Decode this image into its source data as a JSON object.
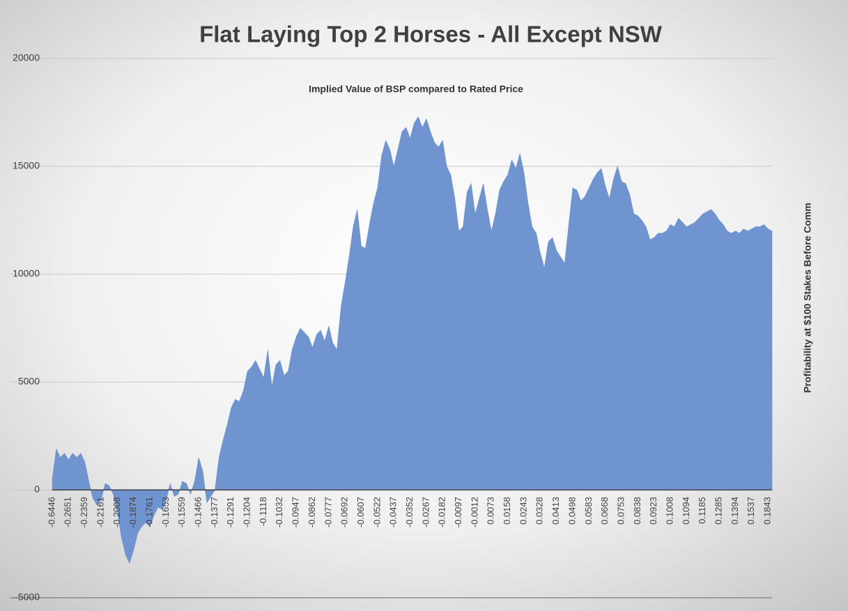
{
  "chart_data": {
    "type": "area",
    "title": "Flat Laying Top 2 Horses - All Except NSW",
    "subtitle": "Implied Value of BSP compared to Rated Price",
    "y_label": "Profitability at $100 Stakes Before Comm",
    "color": "#7094d0",
    "grid": true,
    "ylim": [
      -5000,
      20000
    ],
    "yticks": [
      -5000,
      0,
      5000,
      10000,
      15000,
      20000
    ],
    "categories": [
      "-0.6446",
      null,
      null,
      null,
      "-0.2651",
      null,
      null,
      null,
      "-0.2359",
      null,
      null,
      null,
      "-0.2161",
      null,
      null,
      null,
      "-0.2008",
      null,
      null,
      null,
      "-0.1874",
      null,
      null,
      null,
      "-0.1761",
      null,
      null,
      null,
      "-0.1653",
      null,
      null,
      null,
      "-0.1559",
      null,
      null,
      null,
      "-0.1466",
      null,
      null,
      null,
      "-0.1377",
      null,
      null,
      null,
      "-0.1291",
      null,
      null,
      null,
      "-0.1204",
      null,
      null,
      null,
      "-0.1118",
      null,
      null,
      null,
      "-0.1032",
      null,
      null,
      null,
      "-0.0947",
      null,
      null,
      null,
      "-0.0862",
      null,
      null,
      null,
      "-0.0777",
      null,
      null,
      null,
      "-0.0692",
      null,
      null,
      null,
      "-0.0607",
      null,
      null,
      null,
      "-0.0522",
      null,
      null,
      null,
      "-0.0437",
      null,
      null,
      null,
      "-0.0352",
      null,
      null,
      null,
      "-0.0267",
      null,
      null,
      null,
      "-0.0182",
      null,
      null,
      null,
      "-0.0097",
      null,
      null,
      null,
      "-0.0012",
      null,
      null,
      null,
      "0.0073",
      null,
      null,
      null,
      "0.0158",
      null,
      null,
      null,
      "0.0243",
      null,
      null,
      null,
      "0.0328",
      null,
      null,
      null,
      "0.0413",
      null,
      null,
      null,
      "0.0498",
      null,
      null,
      null,
      "0.0583",
      null,
      null,
      null,
      "0.0668",
      null,
      null,
      null,
      "0.0753",
      null,
      null,
      null,
      "0.0838",
      null,
      null,
      null,
      "0.0923",
      null,
      null,
      null,
      "0.1008",
      null,
      null,
      null,
      "0.1094",
      null,
      null,
      null,
      "0.1185",
      null,
      null,
      null,
      "0.1285",
      null,
      null,
      null,
      "0.1394",
      null,
      null,
      null,
      "0.1537",
      null,
      null,
      null,
      "0.1843",
      null
    ],
    "values": [
      500,
      1900,
      1500,
      1700,
      1400,
      1700,
      1500,
      1700,
      1300,
      400,
      -400,
      -700,
      -500,
      300,
      200,
      -200,
      -1000,
      -2200,
      -3000,
      -3400,
      -2800,
      -2000,
      -1700,
      -1500,
      -1700,
      -1200,
      -800,
      -900,
      -500,
      300,
      -300,
      -200,
      400,
      300,
      -200,
      400,
      1500,
      900,
      -600,
      -300,
      0,
      1500,
      2300,
      3000,
      3800,
      4200,
      4100,
      4600,
      5500,
      5700,
      6000,
      5600,
      5200,
      6500,
      4800,
      5800,
      6000,
      5300,
      5500,
      6500,
      7100,
      7500,
      7300,
      7100,
      6600,
      7200,
      7400,
      6900,
      7600,
      6800,
      6500,
      8500,
      9600,
      10800,
      12200,
      13000,
      11300,
      11200,
      12300,
      13300,
      14000,
      15500,
      16200,
      15800,
      15000,
      15800,
      16600,
      16800,
      16300,
      17000,
      17300,
      16800,
      17200,
      16600,
      16100,
      15900,
      16200,
      15000,
      14600,
      13500,
      12000,
      12200,
      13800,
      14200,
      12800,
      13500,
      14200,
      13000,
      12000,
      12800,
      13900,
      14300,
      14600,
      15300,
      14900,
      15600,
      14700,
      13300,
      12200,
      11900,
      11000,
      10300,
      11500,
      11700,
      11100,
      10800,
      10500,
      12300,
      14000,
      13900,
      13400,
      13600,
      14000,
      14400,
      14700,
      14900,
      14100,
      13500,
      14400,
      15000,
      14300,
      14200,
      13700,
      12800,
      12700,
      12500,
      12200,
      11600,
      11700,
      11900,
      11900,
      12000,
      12300,
      12200,
      12600,
      12400,
      12200,
      12300,
      12400,
      12600,
      12800,
      12900,
      13000,
      12800,
      12500,
      12300,
      12000,
      11900,
      12000,
      11900,
      12100,
      12000,
      12100,
      12200,
      12200,
      12300,
      12100,
      12000
    ]
  }
}
